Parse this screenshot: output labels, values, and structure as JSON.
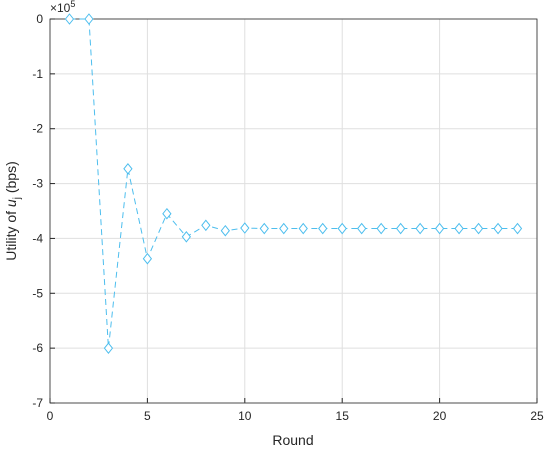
{
  "chart_data": {
    "type": "line",
    "xlabel": "Round",
    "ylabel": "Utility of ",
    "ylabel_var": "u",
    "ylabel_sub": "j",
    "ylabel_unit": " (bps)",
    "y_multiplier": "×10",
    "y_multiplier_exponent": "5",
    "x": [
      1,
      2,
      3,
      4,
      5,
      6,
      7,
      8,
      9,
      10,
      11,
      12,
      13,
      14,
      15,
      16,
      17,
      18,
      19,
      20,
      21,
      22,
      23,
      24
    ],
    "series": [
      {
        "name": "Utility",
        "color": "#4dbeee",
        "values": [
          0,
          0,
          -6,
          -2.73,
          -4.37,
          -3.55,
          -3.97,
          -3.76,
          -3.86,
          -3.81,
          -3.82,
          -3.82,
          -3.82,
          -3.82,
          -3.82,
          -3.82,
          -3.82,
          -3.82,
          -3.82,
          -3.82,
          -3.82,
          -3.82,
          -3.82,
          -3.82
        ]
      }
    ],
    "xlim": [
      0,
      25
    ],
    "xticks": [
      0,
      5,
      10,
      15,
      20,
      25
    ],
    "ylim": [
      -7,
      0
    ],
    "yticks": [
      -7,
      -6,
      -5,
      -4,
      -3,
      -2,
      -1,
      0
    ],
    "grid": true
  }
}
